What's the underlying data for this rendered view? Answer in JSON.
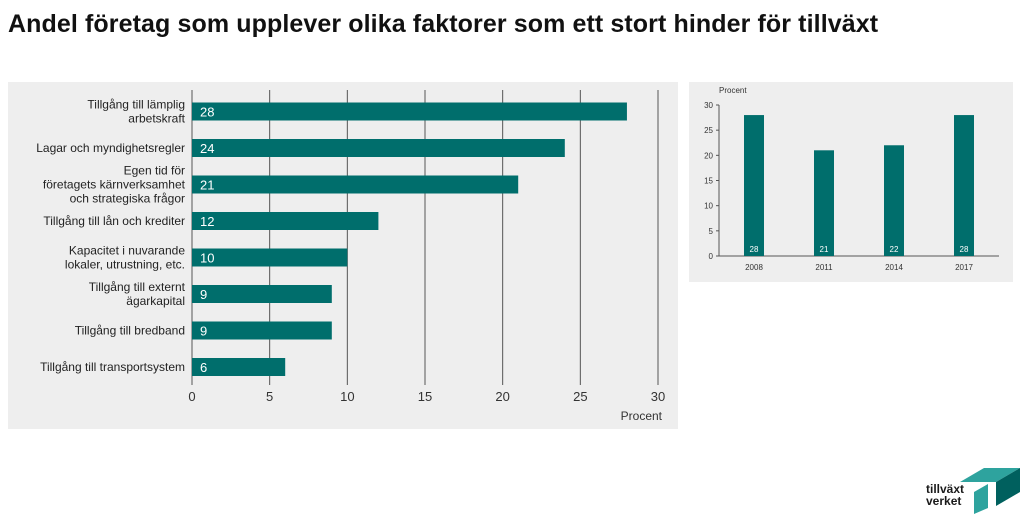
{
  "title": "Andel företag som upplever olika faktorer som ett stort hinder för tillväxt",
  "colors": {
    "bar": "#006e6c",
    "panel": "#eeeeee",
    "grid": "#555555",
    "logo_accent": "#2ea39e",
    "logo_dark": "#00605e"
  },
  "chart_data": [
    {
      "type": "bar",
      "orientation": "horizontal",
      "categories": [
        "Tillgång till lämplig arbetskraft",
        "Lagar och myndighetsregler",
        "Egen tid för företagets kärnverksamhet och strategiska frågor",
        "Tillgång till lån och krediter",
        "Kapacitet i nuvarande lokaler, utrustning, etc.",
        "Tillgång till externt ägarkapital",
        "Tillgång till bredband",
        "Tillgång till transportsystem"
      ],
      "category_lines": [
        [
          "Tillgång till lämplig",
          "arbetskraft"
        ],
        [
          "Lagar och myndighetsregler"
        ],
        [
          "Egen tid för",
          "företagets kärnverksamhet",
          "och strategiska frågor"
        ],
        [
          "Tillgång till lån och krediter"
        ],
        [
          "Kapacitet i nuvarande",
          "lokaler, utrustning, etc."
        ],
        [
          "Tillgång till externt",
          "ägarkapital"
        ],
        [
          "Tillgång till bredband"
        ],
        [
          "Tillgång till transportsystem"
        ]
      ],
      "values": [
        28,
        24,
        21,
        12,
        10,
        9,
        9,
        6
      ],
      "xlabel": "Procent",
      "xlim": [
        0,
        30
      ],
      "xticks": [
        0,
        5,
        10,
        15,
        20,
        25,
        30
      ],
      "grid": true,
      "data_labels": true
    },
    {
      "type": "bar",
      "orientation": "vertical",
      "categories": [
        "2008",
        "2011",
        "2014",
        "2017"
      ],
      "values": [
        28,
        21,
        22,
        28
      ],
      "ylabel": "Procent",
      "ylim": [
        0,
        30
      ],
      "yticks": [
        0,
        5,
        10,
        15,
        20,
        25,
        30
      ],
      "grid": false,
      "data_labels": true
    }
  ],
  "logo": {
    "lines": [
      "tillväxt",
      "verket"
    ]
  }
}
